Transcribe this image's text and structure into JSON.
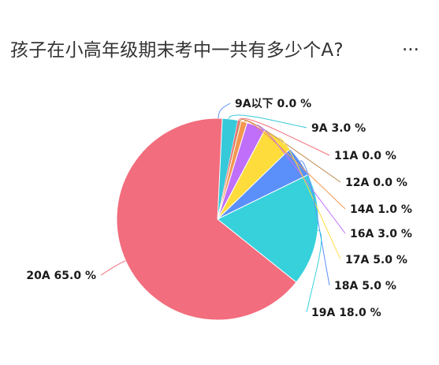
{
  "header": {
    "title": "孩子在小高年级期末考中一共有多少个A?",
    "more": "..."
  },
  "chart_data": {
    "type": "pie",
    "title": "孩子在小高年级期末考中一共有多少个A?",
    "slices": [
      {
        "name": "9A以下",
        "value": 0.0,
        "label": "9A以下 0.0 %",
        "color": "#5b8ff9"
      },
      {
        "name": "9A",
        "value": 3.0,
        "label": "9A 3.0 %",
        "color": "#36c9d9"
      },
      {
        "name": "11A",
        "value": 0.0,
        "label": "11A 0.0 %",
        "color": "#f46f7a"
      },
      {
        "name": "12A",
        "value": 0.0,
        "label": "12A 0.0 %",
        "color": "#c08a55"
      },
      {
        "name": "14A",
        "value": 1.0,
        "label": "14A 1.0 %",
        "color": "#f4974f"
      },
      {
        "name": "16A",
        "value": 3.0,
        "label": "16A 3.0 %",
        "color": "#c06ffb"
      },
      {
        "name": "17A",
        "value": 5.0,
        "label": "17A 5.0 %",
        "color": "#fddc3c"
      },
      {
        "name": "18A",
        "value": 5.0,
        "label": "18A 5.0 %",
        "color": "#5b8ff9"
      },
      {
        "name": "19A",
        "value": 18.0,
        "label": "19A 18.0 %",
        "color": "#36d1db"
      },
      {
        "name": "20A",
        "value": 65.0,
        "label": "20A 65.0 %",
        "color": "#f26d7d"
      }
    ]
  }
}
